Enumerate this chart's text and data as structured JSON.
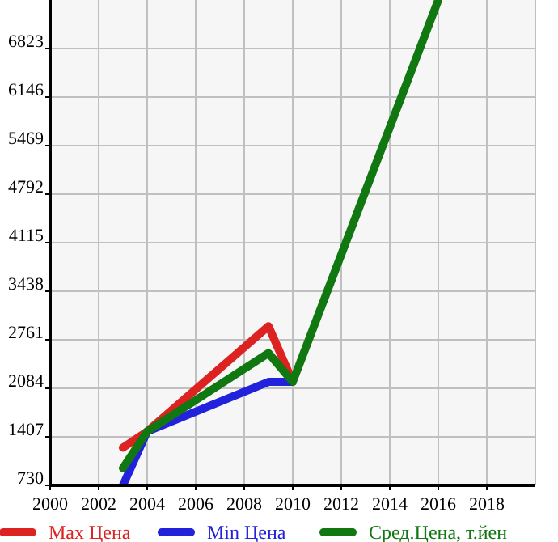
{
  "chart_data": {
    "type": "line",
    "x": [
      2003,
      2004,
      2009,
      2010,
      2016
    ],
    "series": [
      {
        "name": "Max Цена",
        "color": "#dd2222",
        "values": [
          1256,
          1482,
          2949,
          2174,
          null
        ]
      },
      {
        "name": "Min Цена",
        "color": "#2222dd",
        "values": [
          730,
          1482,
          2174,
          2174,
          null
        ]
      },
      {
        "name": "Сред.Цена, т.йен",
        "color": "#117711",
        "values": [
          971,
          1482,
          2574,
          2174,
          7500
        ]
      }
    ],
    "xlim": [
      2000,
      2020
    ],
    "xticks": [
      2000,
      2002,
      2004,
      2006,
      2008,
      2010,
      2012,
      2014,
      2016,
      2018
    ],
    "ylim": [
      730,
      7500
    ],
    "yticks": [
      730,
      1407,
      2084,
      2761,
      3438,
      4115,
      4792,
      5469,
      6146,
      6823
    ],
    "grid": true,
    "legend": "bottom",
    "marker": "none",
    "line_style": "solid"
  }
}
